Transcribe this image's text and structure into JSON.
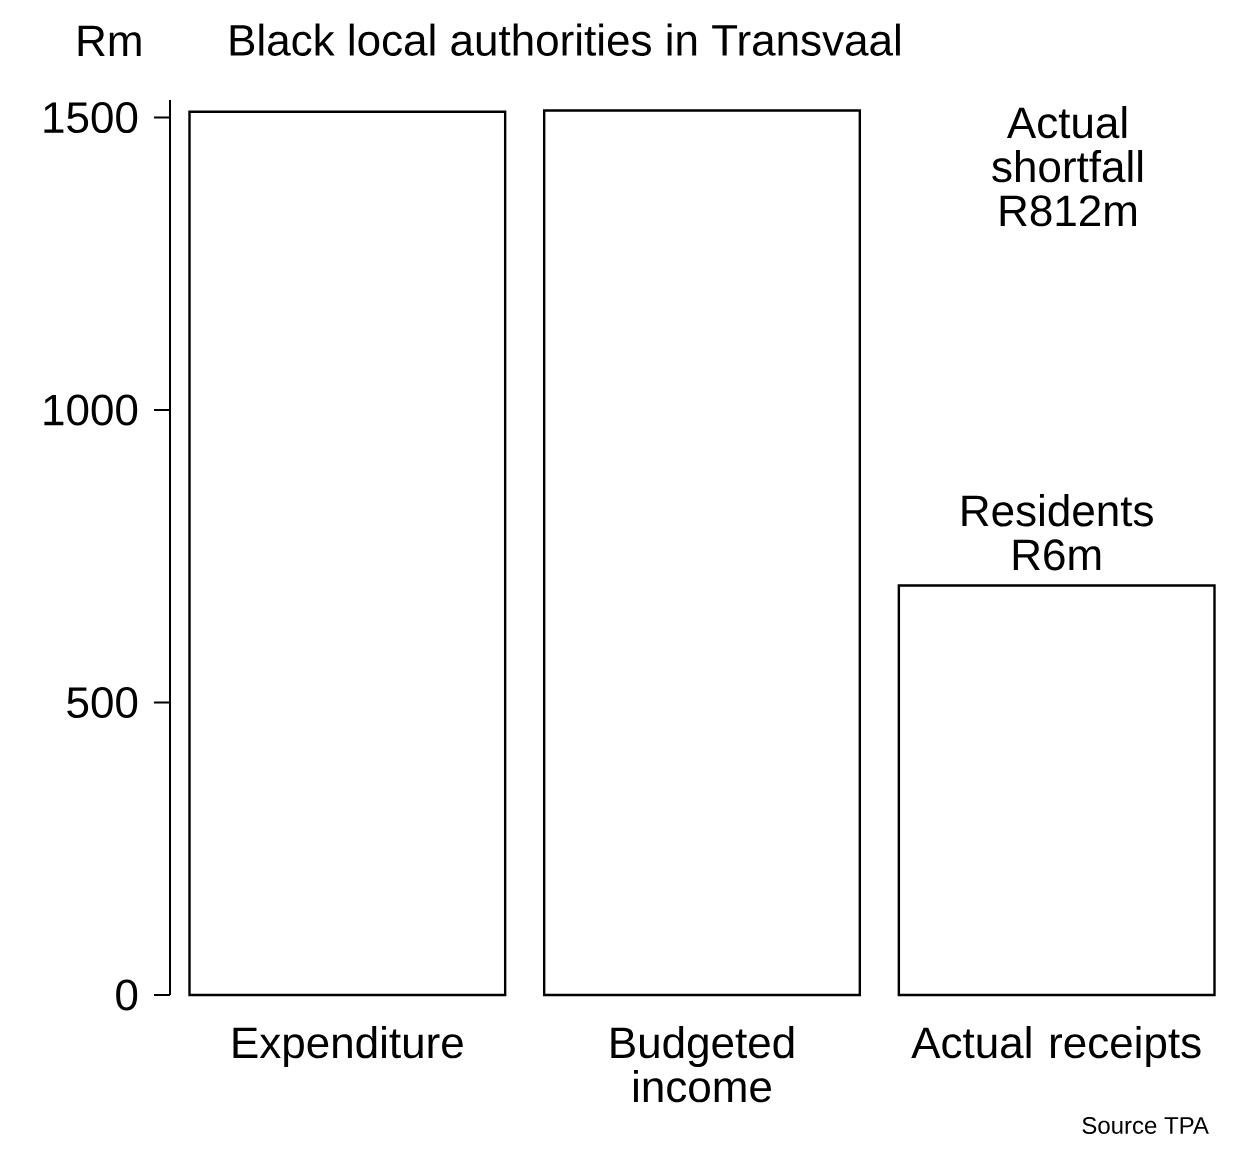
{
  "chart_data": {
    "type": "bar",
    "title": "Black local authorities in Transvaal",
    "ylabel": "Rm",
    "categories": [
      "Expenditure",
      "Budgeted income",
      "Actual receipts"
    ],
    "values": [
      1510,
      1512,
      700
    ],
    "color": "#ffffff",
    "ylim": [
      0,
      1530
    ],
    "yticks": [
      0,
      500,
      1000,
      1500
    ],
    "annotations": [
      "Actual shortfall R812m",
      {
        "text": "Residents R6m",
        "x": "Actual receipts",
        "y": 700
      },
      "Source TPA"
    ]
  }
}
